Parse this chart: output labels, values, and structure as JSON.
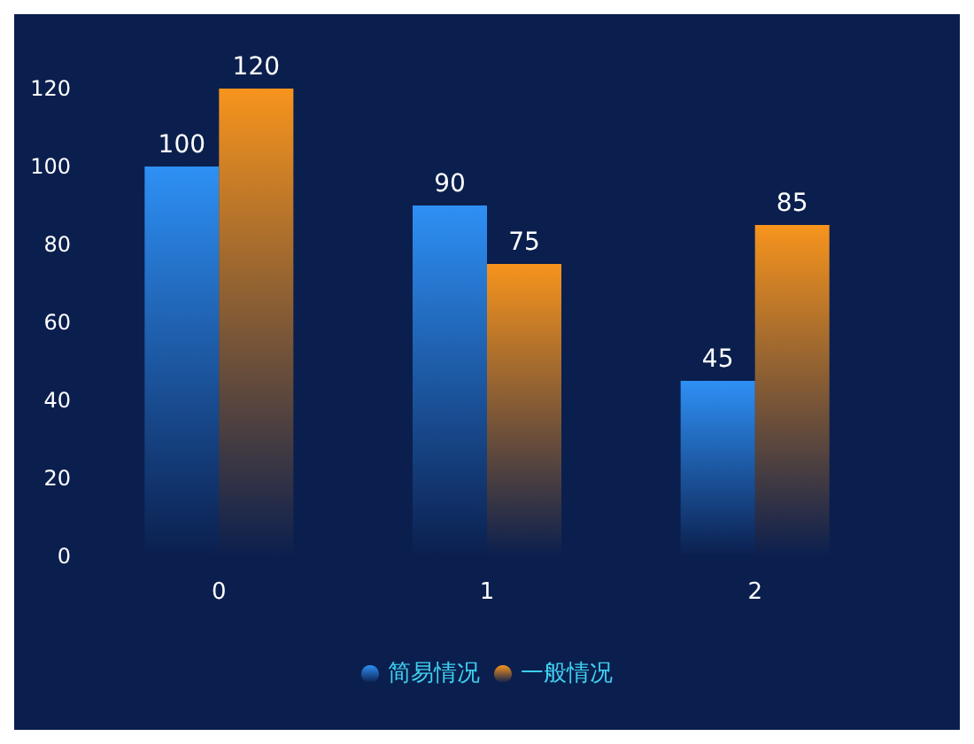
{
  "chart_data": {
    "type": "bar",
    "categories": [
      "0",
      "1",
      "2"
    ],
    "series": [
      {
        "name": "简易情况",
        "color": "#2e90f5",
        "values": [
          100,
          90,
          45
        ]
      },
      {
        "name": "一般情况",
        "color": "#f7941d",
        "values": [
          120,
          75,
          85
        ]
      }
    ],
    "ylim": [
      0,
      120
    ],
    "yticks": [
      0,
      20,
      40,
      60,
      80,
      100,
      120
    ],
    "grid": false,
    "legend": "bottom",
    "data_labels": true
  }
}
